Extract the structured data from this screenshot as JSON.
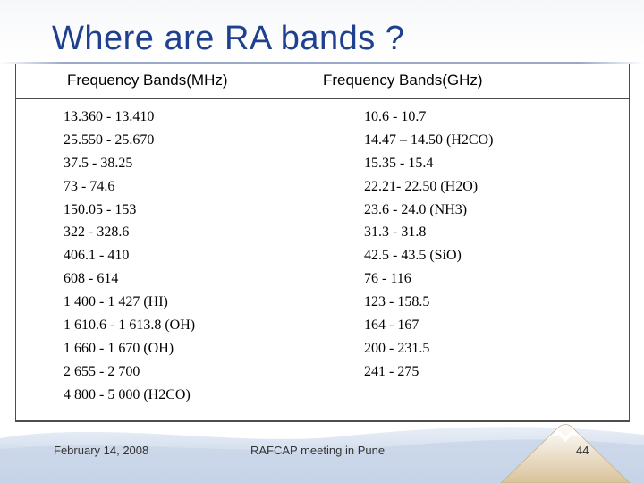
{
  "slide": {
    "title": "Where are RA bands ?",
    "table": {
      "headers": [
        "Frequency Bands(MHz)",
        "Frequency Bands(GHz)"
      ],
      "mhz_bands": [
        "13.360 - 13.410",
        "25.550 - 25.670",
        "37.5 - 38.25",
        "73 - 74.6",
        "150.05 - 153",
        "322 - 328.6",
        "406.1 - 410",
        "608 - 614",
        "1 400 - 1 427 (HI)",
        "1 610.6 - 1 613.8 (OH)",
        "1 660 - 1 670 (OH)",
        "2 655 - 2 700",
        "4 800 - 5 000 (H2CO)"
      ],
      "ghz_bands": [
        "10.6 - 10.7",
        "14.47 – 14.50 (H2CO)",
        "15.35 - 15.4",
        "22.21- 22.50 (H2O)",
        "23.6 - 24.0 (NH3)",
        "31.3 - 31.8",
        "42.5 - 43.5 (SiO)",
        "76 - 116",
        "123 - 158.5",
        "164 - 167",
        "200 - 231.5",
        "241 - 275"
      ]
    },
    "footer": {
      "date": "February 14, 2008",
      "event": "RAFCAP meeting in Pune",
      "page_number": "44"
    },
    "colors": {
      "title": "#1f3f8f",
      "footer_wave": "#c9d6e8"
    }
  }
}
